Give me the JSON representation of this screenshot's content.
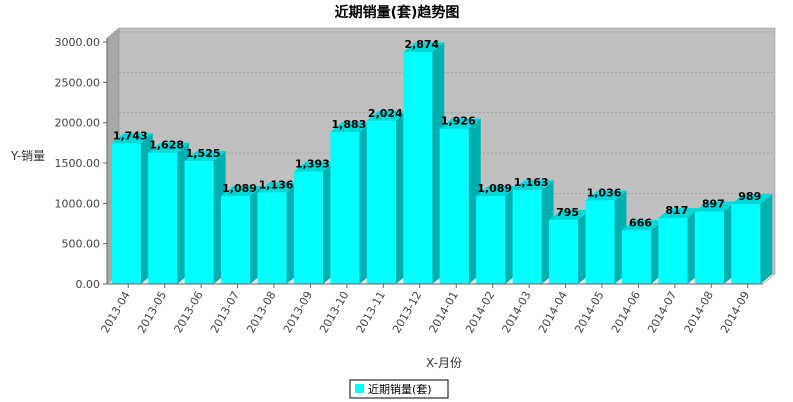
{
  "chart_data": {
    "type": "bar",
    "title": "近期销量(套)趋势图",
    "xlabel": "X-月份",
    "ylabel": "Y-销量",
    "categories": [
      "2013-04",
      "2013-05",
      "2013-06",
      "2013-07",
      "2013-08",
      "2013-09",
      "2013-10",
      "2013-11",
      "2013-12",
      "2014-01",
      "2014-02",
      "2014-03",
      "2014-04",
      "2014-05",
      "2014-06",
      "2014-07",
      "2014-08",
      "2014-09"
    ],
    "series": [
      {
        "name": "近期销量(套)",
        "values": [
          1743,
          1628,
          1525,
          1089,
          1136,
          1393,
          1883,
          2024,
          2874,
          1926,
          1089,
          1163,
          795,
          1036,
          666,
          817,
          897,
          989
        ],
        "labels": [
          "1,743",
          "1,628",
          "1,525",
          "1,089",
          "1,136",
          "1,393",
          "1,883",
          "2,024",
          "2,874",
          "1,926",
          "1,089",
          "1,163",
          "795",
          "1,036",
          "666",
          "817",
          "897",
          "989"
        ]
      }
    ],
    "y_ticks": [
      "0.00",
      "500.00",
      "1000.00",
      "1500.00",
      "2000.00",
      "2500.00",
      "3000.00"
    ],
    "y_tick_values": [
      0,
      500,
      1000,
      1500,
      2000,
      2500,
      3000
    ],
    "ylim": [
      0,
      3050
    ],
    "grid": true,
    "legend_position": "bottom",
    "colors": {
      "bar_front": "#00ffff",
      "bar_side": "#00b0b0",
      "bar_top": "#00d8d8",
      "plot_back": "#c0c0c0",
      "plot_left_wall": "#a8a8a8",
      "plot_floor": "#e6e6e6"
    }
  }
}
